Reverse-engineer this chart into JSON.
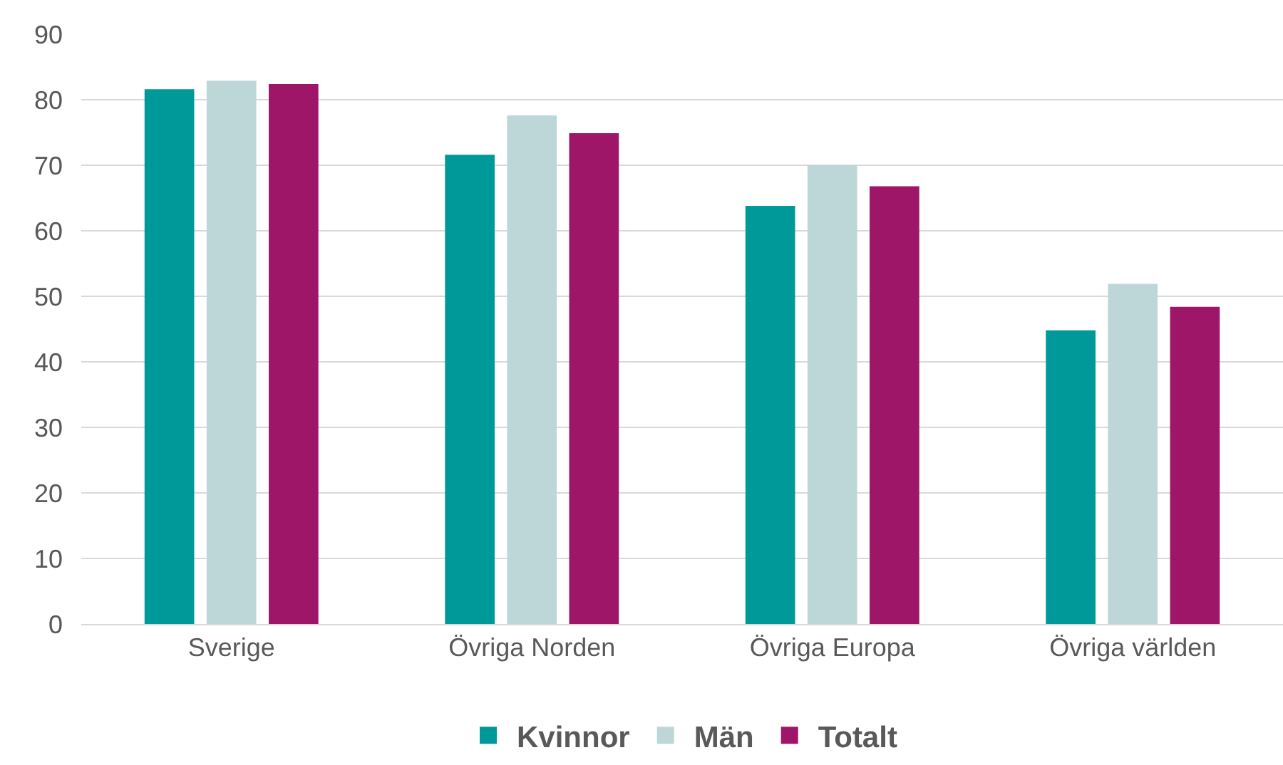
{
  "chart_data": {
    "type": "bar",
    "categories": [
      "Sverige",
      "Övriga Norden",
      "Övriga Europa",
      "Övriga världen"
    ],
    "series": [
      {
        "name": "Kvinnor",
        "color": "#009999",
        "values": [
          81.6,
          71.6,
          63.8,
          44.8
        ]
      },
      {
        "name": "Män",
        "color": "#bdd7d8",
        "values": [
          82.9,
          77.6,
          70.0,
          51.9
        ]
      },
      {
        "name": "Totalt",
        "color": "#9e1668",
        "values": [
          82.4,
          74.9,
          66.8,
          48.4
        ]
      }
    ],
    "ylim": [
      0,
      90
    ],
    "yticks": [
      0,
      10,
      20,
      30,
      40,
      50,
      60,
      70,
      80,
      90
    ],
    "grid": "y",
    "legend": "bottom"
  }
}
